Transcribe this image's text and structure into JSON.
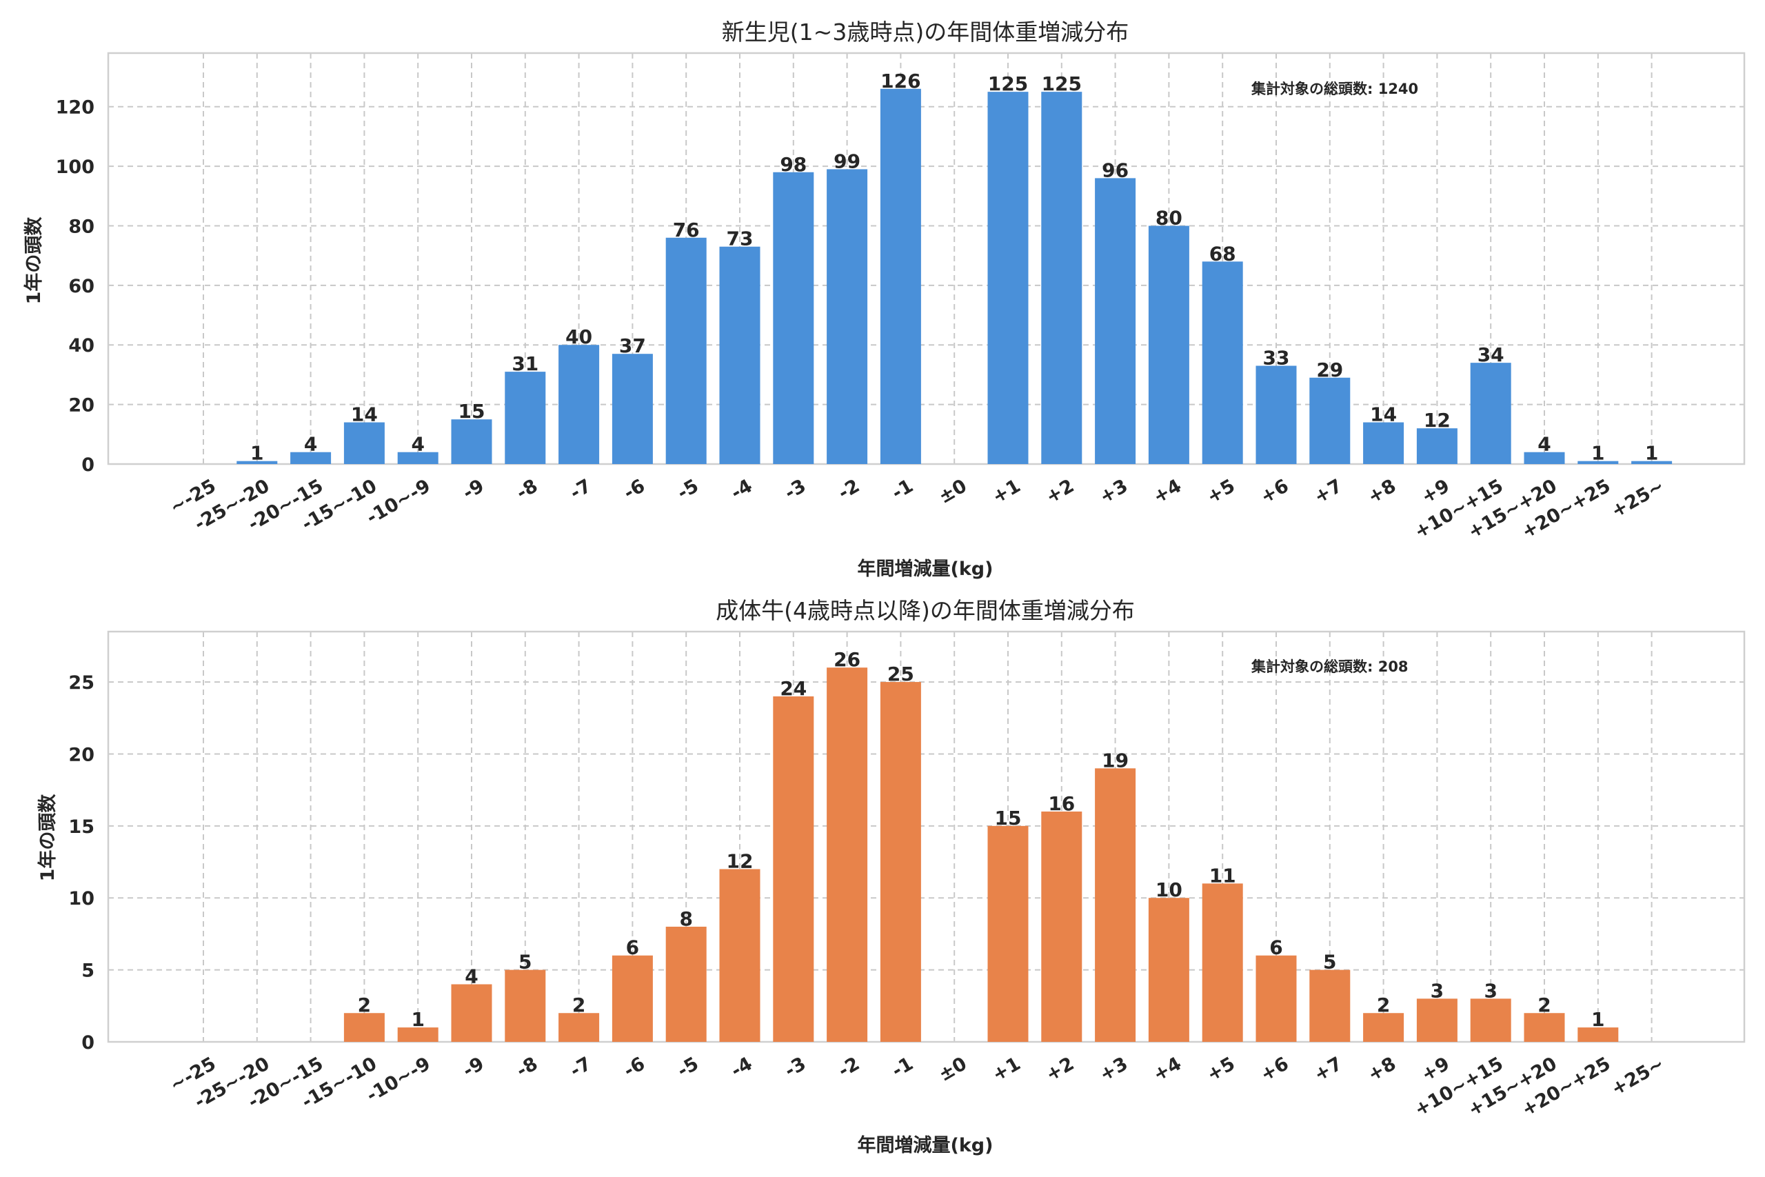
{
  "chart_data": [
    {
      "type": "bar",
      "title": "新生児(1~3歳時点)の年間体重増減分布",
      "xlabel": "年間増減量(kg)",
      "ylabel": "1年の頭数",
      "color": "#4a90d9",
      "ylim": [
        0,
        138
      ],
      "yticks": [
        0,
        20,
        40,
        60,
        80,
        100,
        120
      ],
      "annotation": "集計対象の総頭数: 1240",
      "categories": [
        "~-25",
        "-25~-20",
        "-20~-15",
        "-15~-10",
        "-10~-9",
        "-9",
        "-8",
        "-7",
        "-6",
        "-5",
        "-4",
        "-3",
        "-2",
        "-1",
        "±0",
        "+1",
        "+2",
        "+3",
        "+4",
        "+5",
        "+6",
        "+7",
        "+8",
        "+9",
        "+10~+15",
        "+15~+20",
        "+20~+25",
        "+25~"
      ],
      "values": [
        0,
        1,
        4,
        14,
        4,
        15,
        31,
        40,
        37,
        76,
        73,
        98,
        99,
        126,
        0,
        125,
        125,
        96,
        80,
        68,
        33,
        29,
        14,
        12,
        34,
        4,
        1,
        1
      ]
    },
    {
      "type": "bar",
      "title": "成体牛(4歳時点以降)の年間体重増減分布",
      "xlabel": "年間増減量(kg)",
      "ylabel": "1年の頭数",
      "color": "#e8834a",
      "ylim": [
        0,
        28.5
      ],
      "yticks": [
        0,
        5,
        10,
        15,
        20,
        25
      ],
      "annotation": "集計対象の総頭数: 208",
      "categories": [
        "~-25",
        "-25~-20",
        "-20~-15",
        "-15~-10",
        "-10~-9",
        "-9",
        "-8",
        "-7",
        "-6",
        "-5",
        "-4",
        "-3",
        "-2",
        "-1",
        "±0",
        "+1",
        "+2",
        "+3",
        "+4",
        "+5",
        "+6",
        "+7",
        "+8",
        "+9",
        "+10~+15",
        "+15~+20",
        "+20~+25",
        "+25~"
      ],
      "values": [
        0,
        0,
        0,
        2,
        1,
        4,
        5,
        2,
        6,
        8,
        12,
        24,
        26,
        25,
        0,
        15,
        16,
        19,
        10,
        11,
        6,
        5,
        2,
        3,
        3,
        2,
        1,
        0
      ]
    }
  ]
}
